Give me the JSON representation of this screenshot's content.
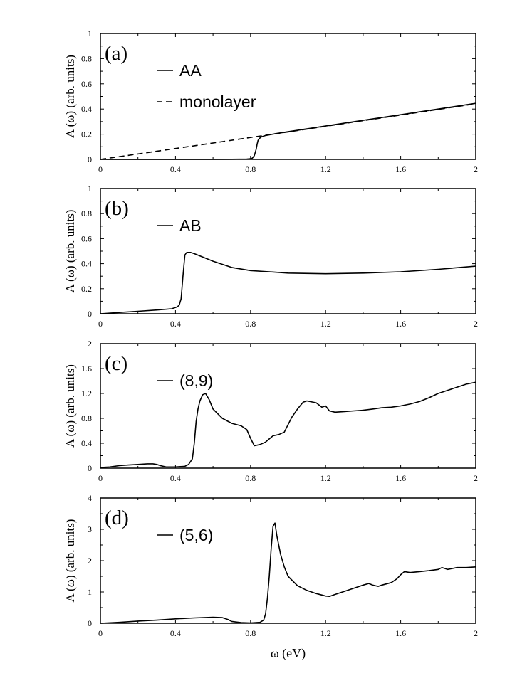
{
  "chart_data": [
    {
      "type": "line",
      "panel": "(a)",
      "ylabel": "A (ω) (arb. units)",
      "xlabel": "",
      "xlim": [
        0,
        2
      ],
      "ylim": [
        0,
        1
      ],
      "xticks": [
        "0",
        "0.4",
        "0.8",
        "1.2",
        "1.6",
        "2"
      ],
      "yticks": [
        "0",
        "0.2",
        "0.4",
        "0.6",
        "0.8",
        "1"
      ],
      "legend_placement": "top-left",
      "series": [
        {
          "name": "AA",
          "style": "solid",
          "x": [
            0,
            0.1,
            0.2,
            0.3,
            0.4,
            0.5,
            0.6,
            0.7,
            0.78,
            0.8,
            0.81,
            0.82,
            0.83,
            0.835,
            0.84,
            0.85,
            0.86,
            0.88,
            0.9,
            0.95,
            1.0,
            1.2,
            1.4,
            1.6,
            1.8,
            2.0
          ],
          "y": [
            0,
            0,
            0,
            0,
            0,
            0,
            0,
            0.001,
            0.003,
            0.005,
            0.01,
            0.03,
            0.08,
            0.12,
            0.15,
            0.17,
            0.18,
            0.19,
            0.195,
            0.208,
            0.22,
            0.265,
            0.31,
            0.355,
            0.4,
            0.445
          ]
        },
        {
          "name": "monolayer",
          "style": "dashed",
          "x": [
            0,
            0.5,
            1.0,
            1.5,
            2.0
          ],
          "y": [
            0,
            0.108,
            0.218,
            0.33,
            0.442
          ]
        }
      ]
    },
    {
      "type": "line",
      "panel": "(b)",
      "ylabel": "A (ω) (arb. units)",
      "xlabel": "",
      "xlim": [
        0,
        2
      ],
      "ylim": [
        0,
        1
      ],
      "xticks": [
        "0",
        "0.4",
        "0.8",
        "1.2",
        "1.6",
        "2"
      ],
      "yticks": [
        "0",
        "0.2",
        "0.4",
        "0.6",
        "0.8",
        "1"
      ],
      "legend_placement": "top-left",
      "series": [
        {
          "name": "AB",
          "style": "solid",
          "x": [
            0,
            0.1,
            0.2,
            0.3,
            0.38,
            0.41,
            0.42,
            0.43,
            0.44,
            0.45,
            0.46,
            0.48,
            0.5,
            0.55,
            0.6,
            0.7,
            0.8,
            0.9,
            1.0,
            1.2,
            1.4,
            1.6,
            1.8,
            2.0
          ],
          "y": [
            0,
            0.01,
            0.02,
            0.03,
            0.04,
            0.055,
            0.07,
            0.12,
            0.3,
            0.47,
            0.49,
            0.49,
            0.48,
            0.45,
            0.42,
            0.37,
            0.345,
            0.335,
            0.325,
            0.32,
            0.325,
            0.335,
            0.355,
            0.38
          ]
        }
      ]
    },
    {
      "type": "line",
      "panel": "(c)",
      "ylabel": "A (ω) (arb. units)",
      "xlabel": "",
      "xlim": [
        0,
        2
      ],
      "ylim": [
        0,
        2
      ],
      "xticks": [
        "0",
        "0.4",
        "0.8",
        "1.2",
        "1.6",
        "2"
      ],
      "yticks": [
        "0",
        "0.4",
        "0.8",
        "1.2",
        "1.6",
        "2"
      ],
      "legend_placement": "top-left",
      "series": [
        {
          "name": "(8,9)",
          "style": "solid",
          "x": [
            0,
            0.05,
            0.1,
            0.15,
            0.2,
            0.25,
            0.28,
            0.3,
            0.32,
            0.35,
            0.4,
            0.45,
            0.47,
            0.49,
            0.5,
            0.51,
            0.52,
            0.53,
            0.545,
            0.56,
            0.58,
            0.6,
            0.65,
            0.7,
            0.75,
            0.78,
            0.8,
            0.82,
            0.85,
            0.88,
            0.9,
            0.92,
            0.95,
            0.98,
            1.0,
            1.02,
            1.05,
            1.08,
            1.1,
            1.15,
            1.18,
            1.2,
            1.22,
            1.25,
            1.3,
            1.35,
            1.4,
            1.45,
            1.5,
            1.55,
            1.6,
            1.65,
            1.7,
            1.75,
            1.8,
            1.85,
            1.9,
            1.95,
            2.0
          ],
          "y": [
            0.01,
            0.02,
            0.04,
            0.05,
            0.06,
            0.07,
            0.07,
            0.06,
            0.04,
            0.02,
            0.02,
            0.03,
            0.06,
            0.15,
            0.4,
            0.75,
            0.95,
            1.08,
            1.18,
            1.2,
            1.1,
            0.95,
            0.8,
            0.72,
            0.68,
            0.62,
            0.48,
            0.36,
            0.38,
            0.42,
            0.47,
            0.52,
            0.54,
            0.58,
            0.7,
            0.82,
            0.95,
            1.06,
            1.08,
            1.05,
            0.98,
            1.0,
            0.92,
            0.9,
            0.91,
            0.92,
            0.93,
            0.95,
            0.97,
            0.98,
            1.0,
            1.03,
            1.07,
            1.13,
            1.2,
            1.25,
            1.3,
            1.35,
            1.38
          ]
        }
      ]
    },
    {
      "type": "line",
      "panel": "(d)",
      "ylabel": "A (ω) (arb. units)",
      "xlabel": "ω (eV)",
      "xlim": [
        0,
        2
      ],
      "ylim": [
        0,
        4
      ],
      "xticks": [
        "0",
        "0.4",
        "0.8",
        "1.2",
        "1.6",
        "2"
      ],
      "yticks": [
        "0",
        "1",
        "2",
        "3",
        "4"
      ],
      "legend_placement": "top-left",
      "series": [
        {
          "name": "(5,6)",
          "style": "solid",
          "x": [
            0,
            0.1,
            0.2,
            0.3,
            0.4,
            0.5,
            0.6,
            0.65,
            0.68,
            0.7,
            0.75,
            0.8,
            0.85,
            0.87,
            0.88,
            0.89,
            0.9,
            0.91,
            0.92,
            0.93,
            0.94,
            0.96,
            0.98,
            1.0,
            1.05,
            1.1,
            1.15,
            1.2,
            1.22,
            1.25,
            1.3,
            1.35,
            1.4,
            1.43,
            1.45,
            1.48,
            1.5,
            1.55,
            1.58,
            1.6,
            1.62,
            1.65,
            1.7,
            1.75,
            1.8,
            1.82,
            1.85,
            1.9,
            1.95,
            2.0
          ],
          "y": [
            0,
            0.03,
            0.07,
            0.1,
            0.14,
            0.17,
            0.19,
            0.18,
            0.12,
            0.06,
            0.02,
            0.01,
            0.03,
            0.1,
            0.3,
            0.8,
            1.5,
            2.4,
            3.1,
            3.2,
            2.8,
            2.2,
            1.8,
            1.5,
            1.2,
            1.05,
            0.95,
            0.87,
            0.86,
            0.92,
            1.02,
            1.12,
            1.22,
            1.27,
            1.22,
            1.18,
            1.22,
            1.3,
            1.42,
            1.55,
            1.65,
            1.62,
            1.65,
            1.68,
            1.72,
            1.78,
            1.72,
            1.78,
            1.78,
            1.8
          ]
        }
      ]
    }
  ]
}
